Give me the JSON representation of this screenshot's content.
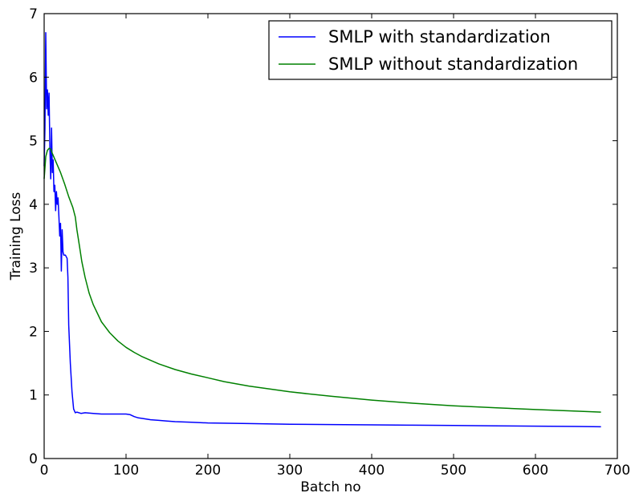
{
  "chart_data": {
    "type": "line",
    "title": "",
    "xlabel": "Batch no",
    "ylabel": "Training Loss",
    "xlim": [
      0,
      700
    ],
    "ylim": [
      0,
      7
    ],
    "xticks": [
      "0",
      "100",
      "200",
      "300",
      "400",
      "500",
      "600",
      "700"
    ],
    "yticks": [
      "0",
      "1",
      "2",
      "3",
      "4",
      "5",
      "6",
      "7"
    ],
    "grid": false,
    "legend_position": "top-right",
    "series": [
      {
        "name": "SMLP with standardization",
        "color": "#0000ff",
        "points": [
          [
            0,
            4.6
          ],
          [
            1,
            5.2
          ],
          [
            2,
            6.7
          ],
          [
            3,
            5.5
          ],
          [
            4,
            5.8
          ],
          [
            5,
            5.4
          ],
          [
            6,
            5.75
          ],
          [
            7,
            4.9
          ],
          [
            8,
            4.4
          ],
          [
            9,
            5.2
          ],
          [
            10,
            4.5
          ],
          [
            11,
            4.7
          ],
          [
            12,
            4.2
          ],
          [
            13,
            4.3
          ],
          [
            14,
            3.9
          ],
          [
            15,
            4.2
          ],
          [
            16,
            4.0
          ],
          [
            17,
            4.1
          ],
          [
            18,
            3.8
          ],
          [
            19,
            3.5
          ],
          [
            20,
            3.7
          ],
          [
            21,
            2.95
          ],
          [
            22,
            3.6
          ],
          [
            23,
            3.25
          ],
          [
            24,
            3.2
          ],
          [
            26,
            3.2
          ],
          [
            28,
            3.15
          ],
          [
            29,
            2.85
          ],
          [
            30,
            2.1
          ],
          [
            32,
            1.5
          ],
          [
            34,
            1.05
          ],
          [
            36,
            0.78
          ],
          [
            38,
            0.72
          ],
          [
            40,
            0.73
          ],
          [
            45,
            0.71
          ],
          [
            50,
            0.72
          ],
          [
            60,
            0.71
          ],
          [
            70,
            0.7
          ],
          [
            80,
            0.7
          ],
          [
            90,
            0.7
          ],
          [
            100,
            0.7
          ],
          [
            105,
            0.69
          ],
          [
            110,
            0.66
          ],
          [
            115,
            0.64
          ],
          [
            120,
            0.63
          ],
          [
            130,
            0.61
          ],
          [
            140,
            0.6
          ],
          [
            150,
            0.59
          ],
          [
            160,
            0.58
          ],
          [
            180,
            0.57
          ],
          [
            200,
            0.56
          ],
          [
            250,
            0.55
          ],
          [
            300,
            0.54
          ],
          [
            350,
            0.535
          ],
          [
            400,
            0.53
          ],
          [
            450,
            0.525
          ],
          [
            500,
            0.52
          ],
          [
            550,
            0.515
          ],
          [
            600,
            0.51
          ],
          [
            650,
            0.505
          ],
          [
            680,
            0.5
          ]
        ]
      },
      {
        "name": "SMLP without standardization",
        "color": "#008000",
        "points": [
          [
            0,
            4.4
          ],
          [
            2,
            4.75
          ],
          [
            4,
            4.85
          ],
          [
            6,
            4.88
          ],
          [
            8,
            4.87
          ],
          [
            10,
            4.8
          ],
          [
            15,
            4.65
          ],
          [
            20,
            4.5
          ],
          [
            25,
            4.32
          ],
          [
            30,
            4.12
          ],
          [
            35,
            3.95
          ],
          [
            38,
            3.8
          ],
          [
            40,
            3.6
          ],
          [
            43,
            3.35
          ],
          [
            46,
            3.1
          ],
          [
            50,
            2.85
          ],
          [
            55,
            2.6
          ],
          [
            60,
            2.42
          ],
          [
            70,
            2.15
          ],
          [
            80,
            1.98
          ],
          [
            90,
            1.85
          ],
          [
            100,
            1.75
          ],
          [
            110,
            1.67
          ],
          [
            120,
            1.6
          ],
          [
            140,
            1.49
          ],
          [
            160,
            1.4
          ],
          [
            180,
            1.33
          ],
          [
            200,
            1.27
          ],
          [
            220,
            1.21
          ],
          [
            250,
            1.14
          ],
          [
            300,
            1.05
          ],
          [
            350,
            0.98
          ],
          [
            400,
            0.92
          ],
          [
            450,
            0.87
          ],
          [
            500,
            0.83
          ],
          [
            550,
            0.8
          ],
          [
            600,
            0.77
          ],
          [
            650,
            0.745
          ],
          [
            680,
            0.73
          ]
        ]
      }
    ]
  }
}
